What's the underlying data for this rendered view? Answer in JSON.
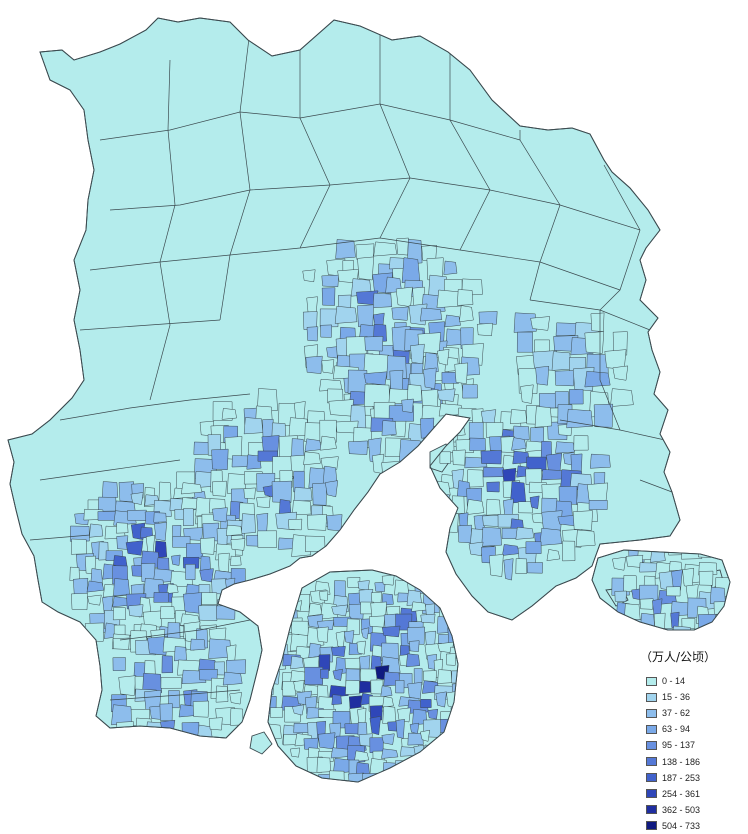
{
  "legend": {
    "title": "（万人/公顷）",
    "classes": [
      {
        "label": "0 - 14",
        "color": "#b4ecec"
      },
      {
        "label": "15 - 36",
        "color": "#a1d4ee"
      },
      {
        "label": "37 - 62",
        "color": "#8dbdec"
      },
      {
        "label": "63 - 94",
        "color": "#7aa9e8"
      },
      {
        "label": "95 - 137",
        "color": "#6890e0"
      },
      {
        "label": "138 - 186",
        "color": "#5478d6"
      },
      {
        "label": "187 - 253",
        "color": "#4162cc"
      },
      {
        "label": "254 - 361",
        "color": "#2f46b8"
      },
      {
        "label": "362 - 503",
        "color": "#1f2ea0"
      },
      {
        "label": "504 - 733",
        "color": "#101a80"
      }
    ]
  },
  "map": {
    "base_color": "#b4ecec",
    "boundary_color": "#3c4b50"
  }
}
